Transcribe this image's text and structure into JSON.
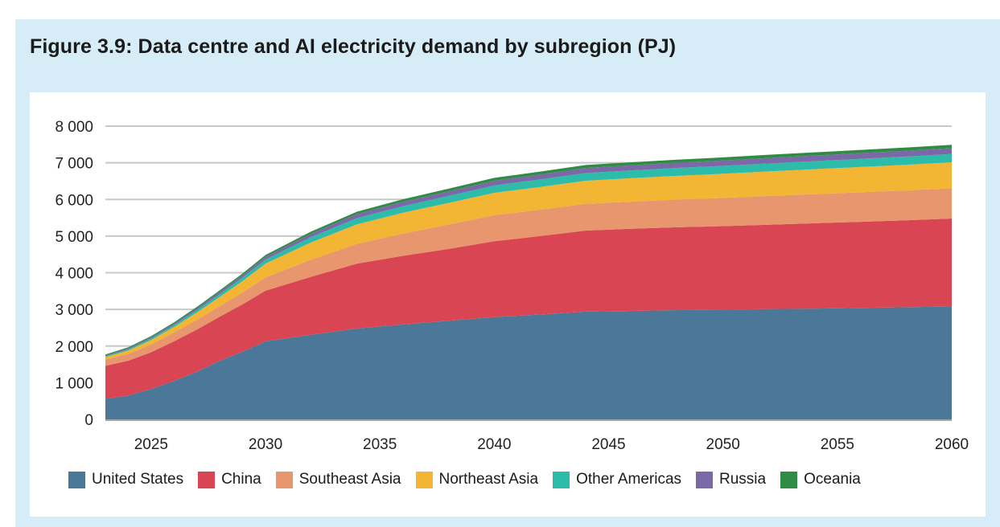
{
  "figure": {
    "title": "Figure 3.9: Data centre and AI electricity demand by subregion (PJ)"
  },
  "colors": {
    "panel_background": "#d6ecf7",
    "chart_background": "#ffffff",
    "gridline": "#c8c8c8"
  },
  "chart_data": {
    "type": "area",
    "stacked": true,
    "title": "Figure 3.9: Data centre and AI electricity demand by subregion (PJ)",
    "xlabel": "",
    "ylabel": "",
    "x": [
      2023,
      2024,
      2025,
      2026,
      2027,
      2028,
      2029,
      2030,
      2032,
      2034,
      2036,
      2038,
      2040,
      2042,
      2044,
      2046,
      2048,
      2050,
      2052,
      2054,
      2056,
      2058,
      2060
    ],
    "xlim": [
      2023,
      2060
    ],
    "ylim": [
      0,
      8000
    ],
    "x_ticks": [
      2025,
      2030,
      2035,
      2040,
      2045,
      2050,
      2055,
      2060
    ],
    "y_ticks": [
      0,
      1000,
      2000,
      3000,
      4000,
      5000,
      6000,
      7000,
      8000
    ],
    "y_tick_labels": [
      "0",
      "1 000",
      "2 000",
      "3 000",
      "4 000",
      "5 000",
      "6 000",
      "7 000",
      "8 000"
    ],
    "grid": true,
    "legend_position": "bottom",
    "series": [
      {
        "name": "United States",
        "color": "#4b7898",
        "values": [
          560,
          650,
          830,
          1050,
          1300,
          1600,
          1850,
          2130,
          2310,
          2480,
          2590,
          2690,
          2790,
          2860,
          2940,
          2960,
          2980,
          2990,
          3010,
          3020,
          3040,
          3060,
          3080
        ]
      },
      {
        "name": "China",
        "color": "#d94552",
        "values": [
          900,
          950,
          1000,
          1080,
          1150,
          1200,
          1290,
          1380,
          1580,
          1770,
          1870,
          1960,
          2070,
          2140,
          2210,
          2240,
          2260,
          2280,
          2300,
          2330,
          2350,
          2370,
          2400
        ]
      },
      {
        "name": "Southeast Asia",
        "color": "#e8966d",
        "values": [
          170,
          190,
          215,
          240,
          265,
          290,
          325,
          360,
          470,
          540,
          605,
          665,
          710,
          720,
          730,
          740,
          755,
          770,
          785,
          795,
          805,
          815,
          825
        ]
      },
      {
        "name": "Northeast Asia",
        "color": "#f2b534",
        "values": [
          70,
          90,
          120,
          150,
          200,
          250,
          310,
          380,
          470,
          530,
          570,
          590,
          610,
          620,
          630,
          640,
          650,
          660,
          670,
          680,
          690,
          700,
          710
        ]
      },
      {
        "name": "Other Americas",
        "color": "#2dbbaa",
        "values": [
          20,
          30,
          40,
          50,
          65,
          80,
          95,
          110,
          145,
          170,
          180,
          190,
          200,
          205,
          210,
          212,
          214,
          216,
          218,
          220,
          222,
          224,
          225
        ]
      },
      {
        "name": "Russia",
        "color": "#7b68a6",
        "values": [
          25,
          30,
          35,
          40,
          48,
          56,
          64,
          72,
          92,
          110,
          118,
          124,
          130,
          135,
          138,
          140,
          143,
          146,
          149,
          152,
          155,
          158,
          160
        ]
      },
      {
        "name": "Oceania",
        "color": "#2f8c45",
        "values": [
          25,
          28,
          32,
          36,
          40,
          44,
          48,
          52,
          60,
          66,
          70,
          74,
          78,
          80,
          82,
          83,
          84,
          85,
          86,
          87,
          88,
          89,
          90
        ]
      }
    ]
  }
}
